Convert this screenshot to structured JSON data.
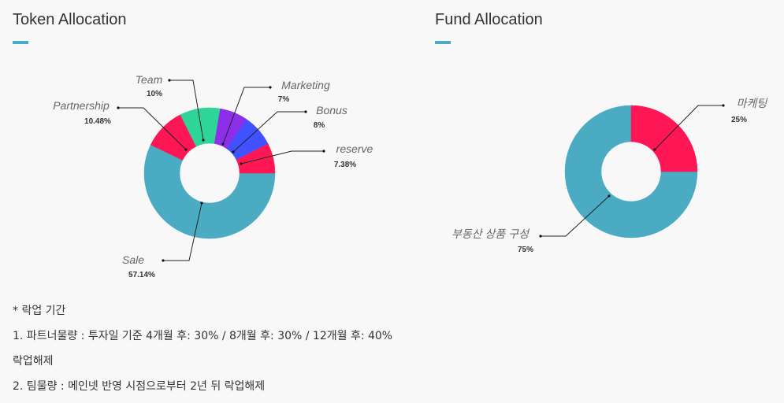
{
  "token_title": "Token Allocation",
  "fund_title": "Fund Allocation",
  "accent_color": "#4aabc3",
  "notes": [
    "* 락업 기간",
    "1. 파트너물량 : 투자일 기준 4개월 후: 30% / 8개월 후: 30% / 12개월 후: 40%",
    "락업해제",
    "2. 팀물량 : 메인넷 반영 시점으로부터 2년 뒤 락업해제"
  ],
  "chart_data": [
    {
      "type": "pie",
      "title": "Token Allocation",
      "slices": [
        {
          "label": "Sale",
          "value": 57.14,
          "display": "57.14%",
          "color": "#4aabc3"
        },
        {
          "label": "Partnership",
          "value": 10.48,
          "display": "10.48%",
          "color": "#ff1654"
        },
        {
          "label": "Team",
          "value": 10,
          "display": "10%",
          "color": "#2ed498"
        },
        {
          "label": "Marketing",
          "value": 7,
          "display": "7%",
          "color": "#8d2ee8"
        },
        {
          "label": "Bonus",
          "value": 8,
          "display": "8%",
          "color": "#4052ff"
        },
        {
          "label": "reserve",
          "value": 7.38,
          "display": "7.38%",
          "color": "#ff1654"
        }
      ]
    },
    {
      "type": "pie",
      "title": "Fund Allocation",
      "slices": [
        {
          "label": "부동산 상품 구성",
          "value": 75,
          "display": "75%",
          "color": "#4aabc3"
        },
        {
          "label": "마케팅",
          "value": 25,
          "display": "25%",
          "color": "#ff1654"
        }
      ]
    }
  ]
}
